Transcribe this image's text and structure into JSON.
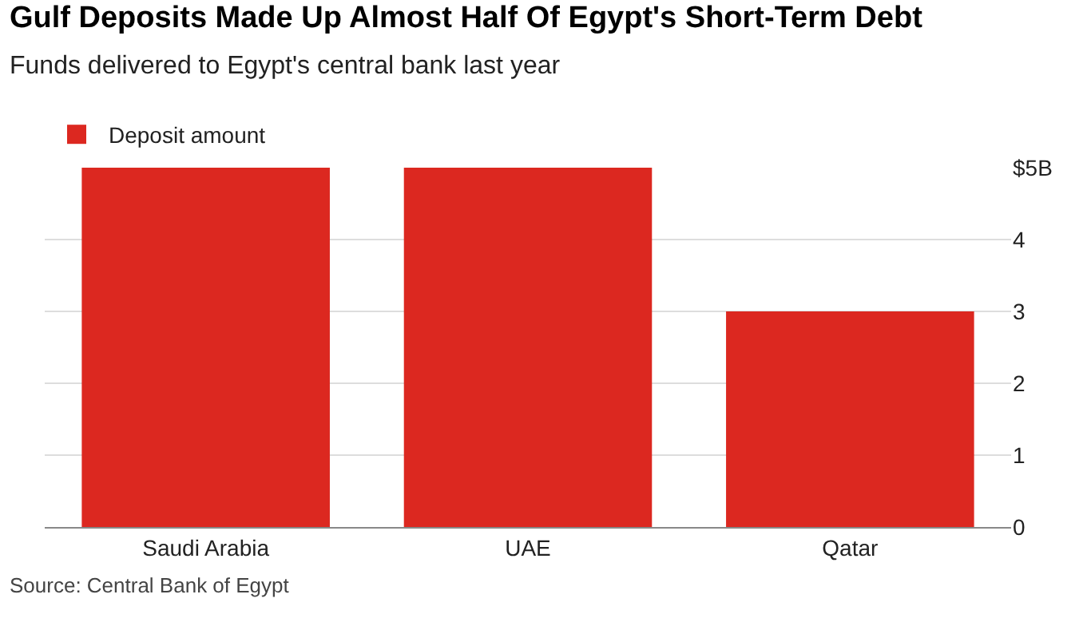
{
  "chart_data": {
    "type": "bar",
    "title": "Gulf Deposits Made Up Almost Half Of Egypt's Short-Term Debt",
    "subtitle": "Funds delivered to Egypt's central bank last year",
    "categories": [
      "Saudi Arabia",
      "UAE",
      "Qatar"
    ],
    "series": [
      {
        "name": "Deposit amount",
        "color": "#dc2820",
        "values": [
          5,
          5,
          3
        ]
      }
    ],
    "ylim": [
      0,
      5
    ],
    "yticks": [
      0,
      1,
      2,
      3,
      4,
      {
        "value": 5,
        "label": "$5B"
      }
    ],
    "grid": "y",
    "legend": "top left",
    "annotations": [
      "Source: Central Bank of Egypt"
    ]
  }
}
